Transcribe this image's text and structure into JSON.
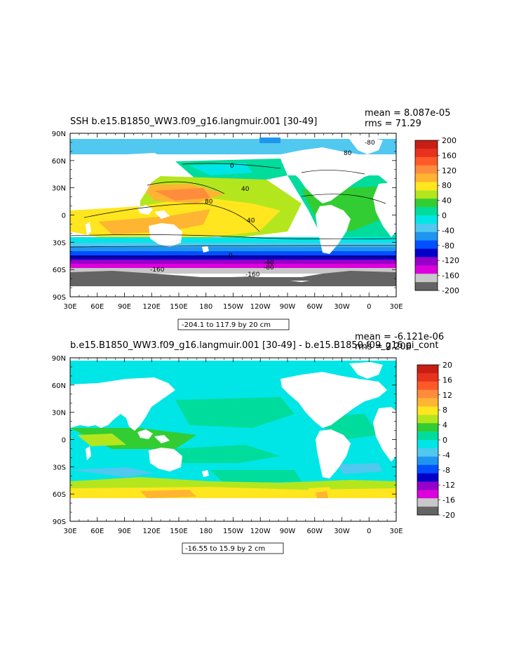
{
  "chart_data": [
    {
      "type": "heatmap",
      "title": "SSH b.e15.B1850_WW3.f09_g16.langmuir.001 [30-49]",
      "stats": {
        "mean": "mean = 8.087e-05",
        "rms": "rms = 71.29"
      },
      "range_label": "-204.1 to 117.9 by 20 cm",
      "x_ticks": [
        "30E",
        "60E",
        "90E",
        "120E",
        "150E",
        "180",
        "150W",
        "120W",
        "90W",
        "60W",
        "30W",
        "0",
        "30E"
      ],
      "y_ticks": [
        "90N",
        "60N",
        "30N",
        "0",
        "30S",
        "60S",
        "90S"
      ],
      "colorbar": {
        "labels": [
          "200",
          "160",
          "120",
          "80",
          "40",
          "0",
          "-40",
          "-80",
          "-120",
          "-160",
          "-200"
        ],
        "colors": [
          "#c81e14",
          "#e6321e",
          "#ff5a28",
          "#ff8c3c",
          "#ffb432",
          "#ffe61e",
          "#b4e61e",
          "#32cd32",
          "#00dc9b",
          "#00e6e6",
          "#50c8f0",
          "#1e96f0",
          "#0050ff",
          "#0000c8",
          "#9600c8",
          "#dc00dc",
          "#c8c8c8",
          "#646464"
        ]
      },
      "contour_labels": [
        "0",
        "40",
        "80",
        "40",
        "0",
        "-40",
        "-80",
        "-160",
        "-160",
        "80",
        "-80"
      ]
    },
    {
      "type": "heatmap",
      "title": "b.e15.B1850_WW3.f09_g16.langmuir.001 [30-49] - b.e15.B1850.f09_g16.pi_cont",
      "stats": {
        "mean": "mean = -6.121e-06",
        "rms": "rms = 2.206"
      },
      "range_label": "-16.55 to 15.9 by 2 cm",
      "x_ticks": [
        "30E",
        "60E",
        "90E",
        "120E",
        "150E",
        "180",
        "150W",
        "120W",
        "90W",
        "60W",
        "30W",
        "0",
        "30E"
      ],
      "y_ticks": [
        "90N",
        "60N",
        "30N",
        "0",
        "30S",
        "60S",
        "90S"
      ],
      "colorbar": {
        "labels": [
          "20",
          "16",
          "12",
          "8",
          "4",
          "0",
          "-4",
          "-8",
          "-12",
          "-16",
          "-20"
        ],
        "colors": [
          "#c81e14",
          "#e6321e",
          "#ff5a28",
          "#ff8c3c",
          "#ffb432",
          "#ffe61e",
          "#b4e61e",
          "#32cd32",
          "#00dc9b",
          "#00e6e6",
          "#50c8f0",
          "#1e96f0",
          "#0050ff",
          "#0000c8",
          "#9600c8",
          "#dc00dc",
          "#c8c8c8",
          "#646464"
        ]
      }
    }
  ]
}
